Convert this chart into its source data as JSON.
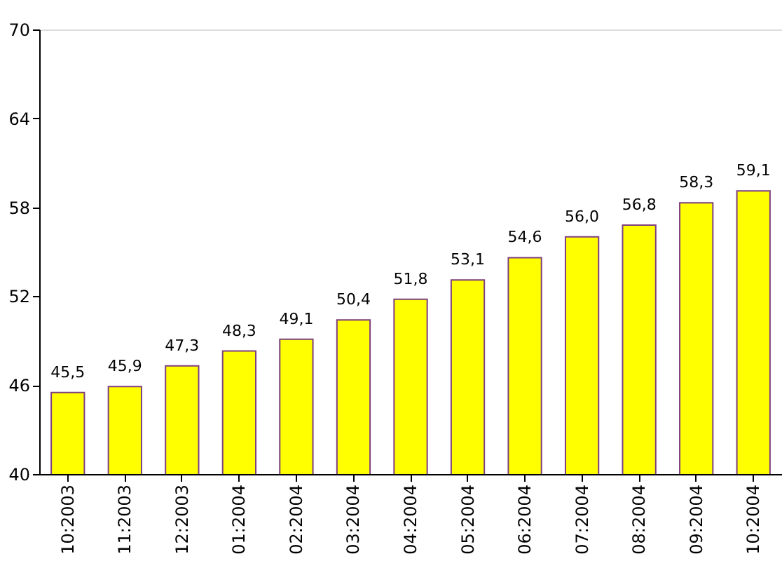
{
  "chart_data": {
    "type": "bar",
    "categories": [
      "10:2003",
      "11:2003",
      "12:2003",
      "01:2004",
      "02:2004",
      "03:2004",
      "04:2004",
      "05:2004",
      "06:2004",
      "07:2004",
      "08:2004",
      "09:2004",
      "10:2004"
    ],
    "values": [
      45.5,
      45.9,
      47.3,
      48.3,
      49.1,
      50.4,
      51.8,
      53.1,
      54.6,
      56.0,
      56.8,
      58.3,
      59.1
    ],
    "value_labels": [
      "45,5",
      "45,9",
      "47,3",
      "48,3",
      "49,1",
      "50,4",
      "51,8",
      "53,1",
      "54,6",
      "56,0",
      "56,8",
      "58,3",
      "59,1"
    ],
    "color": "#ffff00",
    "ylim": [
      40,
      70
    ],
    "yticks": [
      40,
      46,
      52,
      58,
      64,
      70
    ],
    "grid": false
  }
}
